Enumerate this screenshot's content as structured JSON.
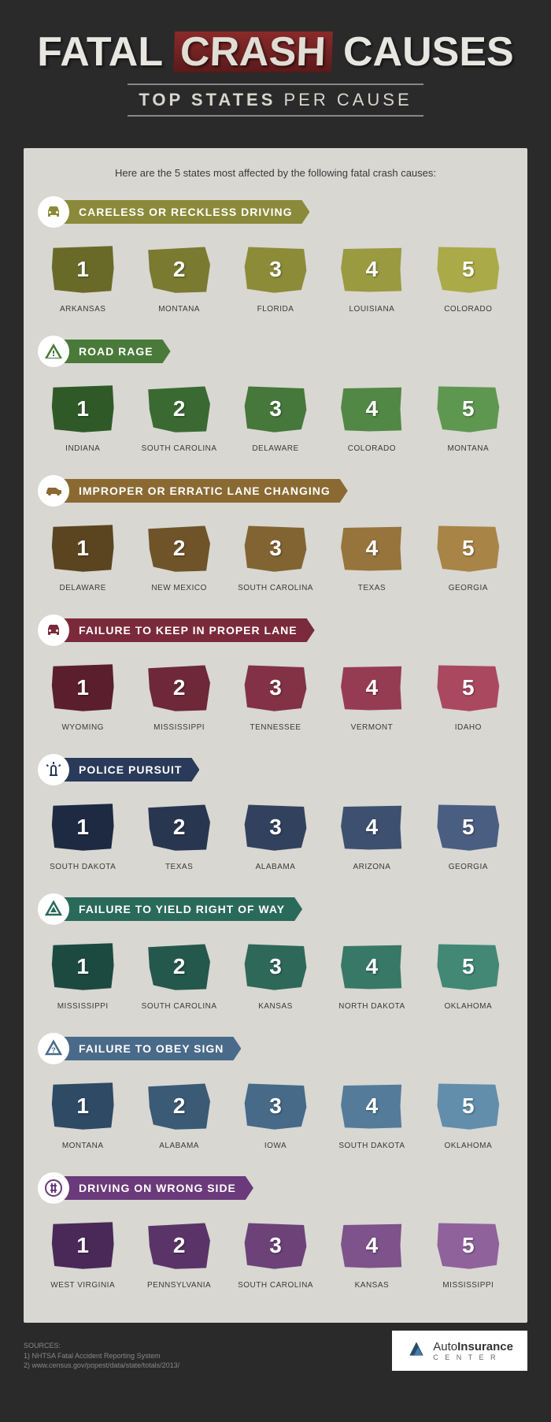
{
  "title": {
    "w1": "FATAL",
    "w2": "CRASH",
    "w3": "CAUSES"
  },
  "subtitle": {
    "bold": "TOP STATES",
    "light": " PER CAUSE"
  },
  "intro": "Here are the 5 states most affected by the following fatal crash causes:",
  "categories": [
    {
      "label": "CARELESS OR RECKLESS DRIVING",
      "icon": "car",
      "banner_color": "#8a8a3a",
      "icon_color": "#8a8a3a",
      "shades": [
        "#6a6a28",
        "#7a7a30",
        "#8c8c38",
        "#9a9a40",
        "#aaaa48"
      ],
      "states": [
        "ARKANSAS",
        "MONTANA",
        "FLORIDA",
        "LOUISIANA",
        "COLORADO"
      ]
    },
    {
      "label": "ROAD RAGE",
      "icon": "warning",
      "banner_color": "#4a7a3a",
      "icon_color": "#4a7a3a",
      "shades": [
        "#2f5a28",
        "#3a6a32",
        "#45783a",
        "#528845",
        "#5e9850"
      ],
      "states": [
        "INDIANA",
        "SOUTH CAROLINA",
        "DELAWARE",
        "COLORADO",
        "MONTANA"
      ]
    },
    {
      "label": "IMPROPER OR ERRATIC LANE CHANGING",
      "icon": "car-side",
      "banner_color": "#8a6a32",
      "icon_color": "#8a6a32",
      "shades": [
        "#5a4520",
        "#6e5428",
        "#826432",
        "#96743c",
        "#a88446"
      ],
      "states": [
        "DELAWARE",
        "NEW MEXICO",
        "SOUTH CAROLINA",
        "TEXAS",
        "GEORGIA"
      ]
    },
    {
      "label": "FAILURE TO KEEP IN PROPER LANE",
      "icon": "car-front",
      "banner_color": "#7a2a3a",
      "icon_color": "#7a2a3a",
      "shades": [
        "#5a1e2c",
        "#6e2838",
        "#823244",
        "#963c52",
        "#aa4860"
      ],
      "states": [
        "WYOMING",
        "MISSISSIPPI",
        "TENNESSEE",
        "VERMONT",
        "IDAHO"
      ]
    },
    {
      "label": "POLICE PURSUIT",
      "icon": "siren",
      "banner_color": "#2a3a5a",
      "icon_color": "#2a3a5a",
      "shades": [
        "#1e2a42",
        "#283650",
        "#32425e",
        "#3e5070",
        "#4a5e82"
      ],
      "states": [
        "SOUTH DAKOTA",
        "TEXAS",
        "ALABAMA",
        "ARIZONA",
        "GEORGIA"
      ]
    },
    {
      "label": "FAILURE TO YIELD RIGHT OF WAY",
      "icon": "yield",
      "banner_color": "#2a6a5a",
      "icon_color": "#2a6a5a",
      "shades": [
        "#1c4a40",
        "#24584c",
        "#2e6858",
        "#387866",
        "#428874"
      ],
      "states": [
        "MISSISSIPPI",
        "SOUTH CAROLINA",
        "KANSAS",
        "NORTH DAKOTA",
        "OKLAHOMA"
      ]
    },
    {
      "label": "FAILURE TO OBEY SIGN",
      "icon": "question",
      "banner_color": "#4a6a8a",
      "icon_color": "#4a6a8a",
      "shades": [
        "#2e4a64",
        "#3a5a76",
        "#466a88",
        "#547c9a",
        "#628eac"
      ],
      "states": [
        "MONTANA",
        "ALABAMA",
        "IOWA",
        "SOUTH DAKOTA",
        "OKLAHOMA"
      ]
    },
    {
      "label": "DRIVING ON WRONG SIDE",
      "icon": "hash",
      "banner_color": "#6a3a7a",
      "icon_color": "#6a3a7a",
      "shades": [
        "#4a2858",
        "#5a3468",
        "#6c4278",
        "#7e528a",
        "#90629c"
      ],
      "states": [
        "WEST VIRGINIA",
        "PENNSYLVANIA",
        "SOUTH CAROLINA",
        "KANSAS",
        "MISSISSIPPI"
      ]
    }
  ],
  "sources": {
    "heading": "SOURCES:",
    "line1": "1) NHTSA Fatal Accident Reporting System",
    "line2": "2) www.census.gov/popest/data/state/totals/2013/"
  },
  "logo": {
    "main": "AutoInsurance",
    "sub": "C E N T E R"
  },
  "bg_color": "#2a2a2a",
  "content_bg": "#d8d7d2"
}
